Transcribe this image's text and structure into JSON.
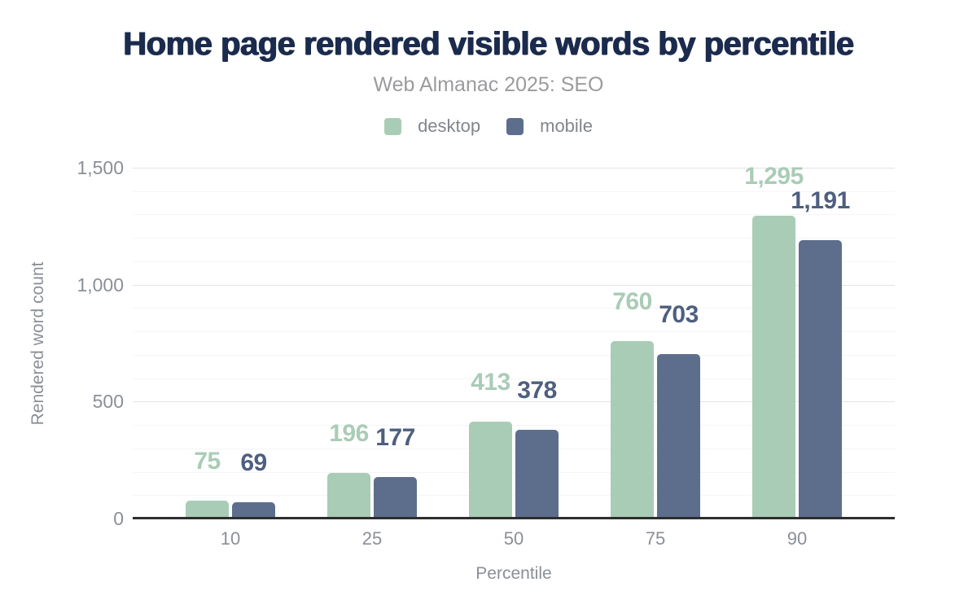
{
  "chart_data": {
    "type": "bar",
    "title": "Home page rendered visible words by percentile",
    "subtitle": "Web Almanac 2025: SEO",
    "categories": [
      "10",
      "25",
      "50",
      "75",
      "90"
    ],
    "series": [
      {
        "name": "desktop",
        "color": "#a9ccb6",
        "label_color": "#a9ccb6",
        "values": [
          75,
          196,
          413,
          760,
          1295
        ]
      },
      {
        "name": "mobile",
        "color": "#5d6e8d",
        "label_color": "#4e5f7f",
        "values": [
          69,
          177,
          378,
          703,
          1191
        ]
      }
    ],
    "xlabel": "Percentile",
    "ylabel": "Rendered word count",
    "ylim": [
      0,
      1500
    ],
    "yticks": [
      0,
      500,
      1000,
      1500
    ],
    "y_minor_step": 100,
    "grid": "horizontal-on",
    "legend_position": "top-center",
    "value_labels": "above-bars",
    "title_color": "#1b2b4d",
    "subtitle_color": "#9b9b9e",
    "axis_text_color": "#8b8f96",
    "axis_line_color": "#2e2e2e"
  }
}
